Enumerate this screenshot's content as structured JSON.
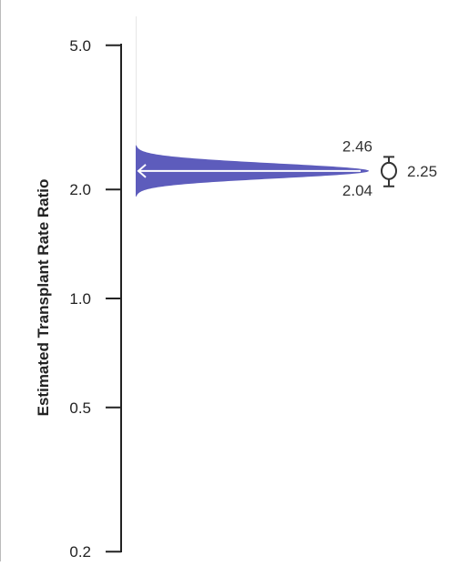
{
  "chart_data": {
    "type": "density",
    "title": "",
    "xlabel": "",
    "ylabel": "Estimated Transplant Rate Ratio",
    "y_scale": "log",
    "ylim": [
      0.2,
      5.0
    ],
    "y_ticks": [
      5.0,
      2.0,
      1.0,
      0.5,
      0.2
    ],
    "y_tick_labels": [
      "5.0",
      "2.0",
      "1.0",
      "0.5",
      "0.2"
    ],
    "estimate": 2.25,
    "ci_lower": 2.04,
    "ci_upper": 2.46,
    "estimate_label": "2.25",
    "ci_lower_label": "2.04",
    "ci_upper_label": "2.46",
    "grid": false,
    "colors": {
      "density_fill": "#5d5cbc",
      "axis": "#222222",
      "estimate_marker": "#333333",
      "arrow": "#ffffff",
      "frame": "#bbbbbb"
    }
  }
}
